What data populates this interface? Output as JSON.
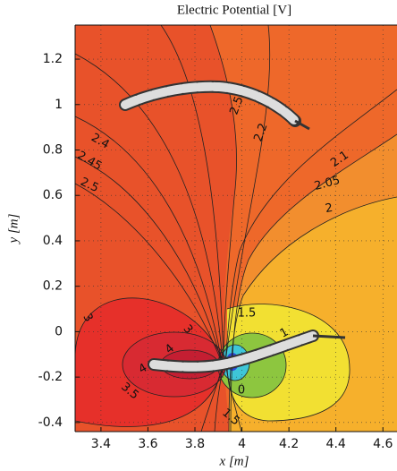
{
  "chart_data": {
    "type": "contour",
    "title": "Electric Potential [V]",
    "xlabel": "x [m]",
    "ylabel": "y [m]",
    "xlim": [
      3.29,
      4.66
    ],
    "ylim": [
      -0.44,
      1.35
    ],
    "xticks": [
      3.4,
      3.6,
      3.8,
      4,
      4.2,
      4.4,
      4.6
    ],
    "yticks": [
      -0.4,
      -0.2,
      0,
      0.2,
      0.4,
      0.6,
      0.8,
      1,
      1.2
    ],
    "grid": true,
    "contour_labels": [
      2.5,
      2.2,
      2.4,
      2.45,
      2.5,
      2.1,
      2.05,
      2,
      3,
      3,
      4,
      4,
      3.5,
      1.5,
      1,
      0,
      1.5
    ]
  }
}
